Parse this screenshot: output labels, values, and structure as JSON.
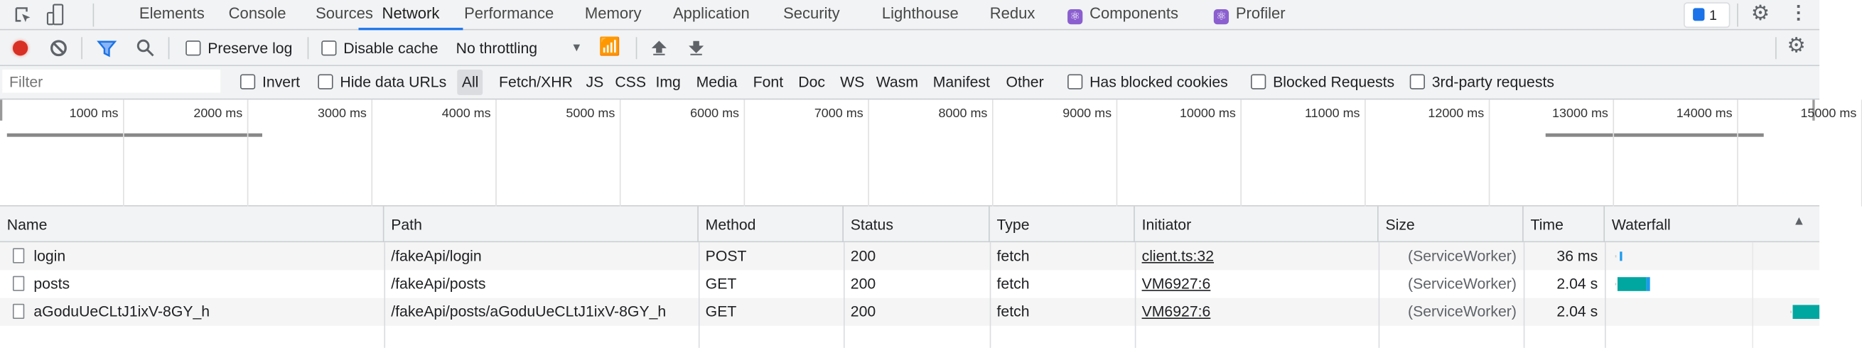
{
  "tabs": {
    "items": [
      "Elements",
      "Console",
      "Sources",
      "Network",
      "Performance",
      "Memory",
      "Application",
      "Security",
      "Lighthouse",
      "Redux",
      "Components",
      "Profiler"
    ],
    "selected": "Network",
    "issues_count": "1"
  },
  "toolbar": {
    "preserve_log": "Preserve log",
    "disable_cache": "Disable cache",
    "throttling": "No throttling",
    "recording": true
  },
  "filter": {
    "placeholder": "Filter",
    "invert": "Invert",
    "hide_data_urls": "Hide data URLs",
    "types": [
      "All",
      "Fetch/XHR",
      "JS",
      "CSS",
      "Img",
      "Media",
      "Font",
      "Doc",
      "WS",
      "Wasm",
      "Manifest",
      "Other"
    ],
    "selected_type": "All",
    "has_blocked_cookies": "Has blocked cookies",
    "blocked_requests": "Blocked Requests",
    "third_party": "3rd-party requests"
  },
  "overview": {
    "ticks": [
      "1000 ms",
      "2000 ms",
      "3000 ms",
      "4000 ms",
      "5000 ms",
      "6000 ms",
      "7000 ms",
      "8000 ms",
      "9000 ms",
      "10000 ms",
      "11000 ms",
      "12000 ms",
      "13000 ms",
      "14000 ms",
      "15000 ms"
    ]
  },
  "table": {
    "columns": [
      "Name",
      "Path",
      "Method",
      "Status",
      "Type",
      "Initiator",
      "Size",
      "Time",
      "Waterfall"
    ],
    "rows": [
      {
        "name": "login",
        "path": "/fakeApi/login",
        "method": "POST",
        "status": "200",
        "type": "fetch",
        "initiator": "client.ts:32",
        "size": "(ServiceWorker)",
        "time": "36 ms"
      },
      {
        "name": "posts",
        "path": "/fakeApi/posts",
        "method": "GET",
        "status": "200",
        "type": "fetch",
        "initiator": "VM6927:6",
        "size": "(ServiceWorker)",
        "time": "2.04 s"
      },
      {
        "name": "aGoduUeCLtJ1ixV-8GY_h",
        "path": "/fakeApi/posts/aGoduUeCLtJ1ixV-8GY_h",
        "method": "GET",
        "status": "200",
        "type": "fetch",
        "initiator": "VM6927:6",
        "size": "(ServiceWorker)",
        "time": "2.04 s"
      }
    ]
  },
  "colors": {
    "accent": "#1a73e8",
    "record": "#d93025",
    "waterfall_wait": "#00a6a0",
    "waterfall_download": "#1a9bf0",
    "react_icon": "#8b5fcf"
  }
}
